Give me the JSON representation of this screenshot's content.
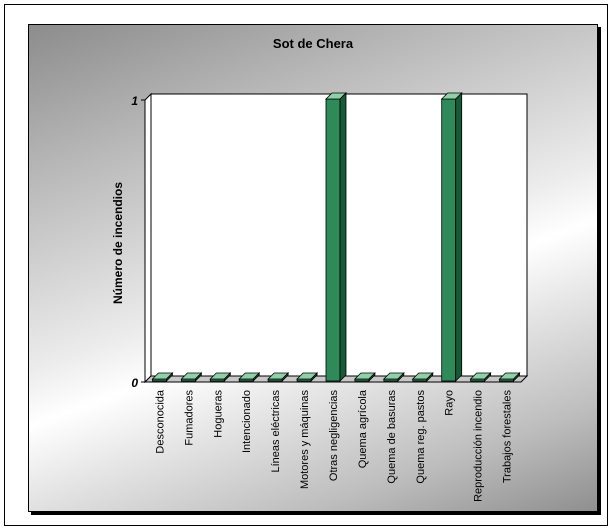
{
  "chart_data": {
    "type": "bar",
    "title": "Sot de Chera",
    "ylabel": "Número de incendios",
    "xlabel": "",
    "categories": [
      "Desconocida",
      "Fumadores",
      "Hogueras",
      "Intencionado",
      "Líneas eléctricas",
      "Motores y máquinas",
      "Otras negligencias",
      "Quema agrícola",
      "Quema de basuras",
      "Quema reg. pastos",
      "Rayo",
      "Reproducción incendio",
      "Trabajos forestales"
    ],
    "values": [
      0,
      0,
      0,
      0,
      0,
      0,
      1,
      0,
      0,
      0,
      1,
      0,
      0
    ],
    "ylim": [
      0,
      1
    ],
    "yticks": [
      "0",
      "1"
    ],
    "grid": false,
    "legend": "none",
    "bar_colors": {
      "front": "#2f8a5a",
      "top": "#8fd0a8",
      "side": "#165a36"
    }
  }
}
